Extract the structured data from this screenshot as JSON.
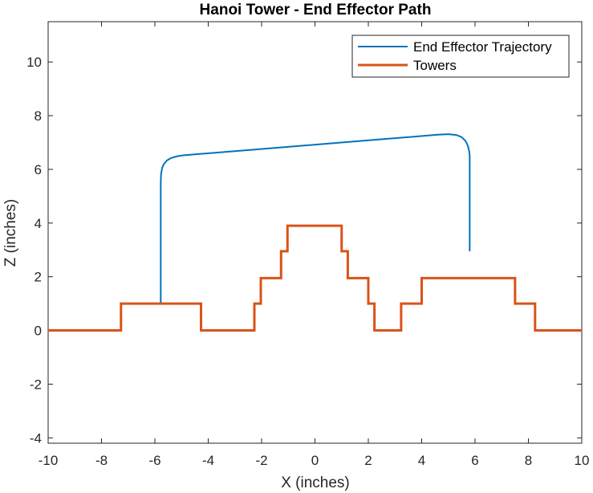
{
  "chart_data": {
    "type": "line",
    "title": "Hanoi Tower - End Effector Path",
    "xlabel": "X (inches)",
    "ylabel": "Z (inches)",
    "xlim": [
      -10,
      10
    ],
    "ylim": [
      -4.2,
      11.5
    ],
    "xticks": [
      -10,
      -8,
      -6,
      -4,
      -2,
      0,
      2,
      4,
      6,
      8,
      10
    ],
    "yticks": [
      -4,
      -2,
      0,
      2,
      4,
      6,
      8,
      10
    ],
    "grid": false,
    "legend_position": "top-right",
    "series": [
      {
        "name": "End Effector Trajectory",
        "color": "#0072BD",
        "line_width": 2,
        "x": [
          -5.78,
          -5.78,
          -5.77,
          -5.73,
          -5.66,
          -5.55,
          -5.4,
          -5.2,
          -4.95,
          -4.6,
          -1.0,
          2.0,
          4.6,
          5.0,
          5.3,
          5.5,
          5.65,
          5.73,
          5.78,
          5.8,
          5.8
        ],
        "y": [
          1.0,
          5.45,
          5.8,
          6.05,
          6.2,
          6.33,
          6.42,
          6.48,
          6.52,
          6.55,
          6.84,
          7.08,
          7.29,
          7.31,
          7.28,
          7.2,
          7.05,
          6.88,
          6.68,
          6.5,
          2.95
        ]
      },
      {
        "name": "Towers",
        "color": "#D95319",
        "line_width": 3,
        "x": [
          -10,
          -7.27,
          -7.27,
          -4.27,
          -4.27,
          -2.27,
          -2.27,
          -2.03,
          -2.03,
          -1.27,
          -1.27,
          -1.03,
          -1.03,
          1.0,
          1.0,
          1.23,
          1.23,
          2.0,
          2.0,
          2.23,
          2.23,
          3.23,
          3.23,
          4.0,
          4.0,
          7.5,
          7.5,
          8.25,
          8.25,
          10
        ],
        "y": [
          0,
          0,
          1,
          1,
          0,
          0,
          1,
          1,
          1.95,
          1.95,
          2.95,
          2.95,
          3.9,
          3.9,
          2.95,
          2.95,
          1.95,
          1.95,
          1,
          1,
          0,
          0,
          1,
          1,
          1.95,
          1.95,
          1,
          1,
          0,
          0
        ]
      }
    ]
  }
}
